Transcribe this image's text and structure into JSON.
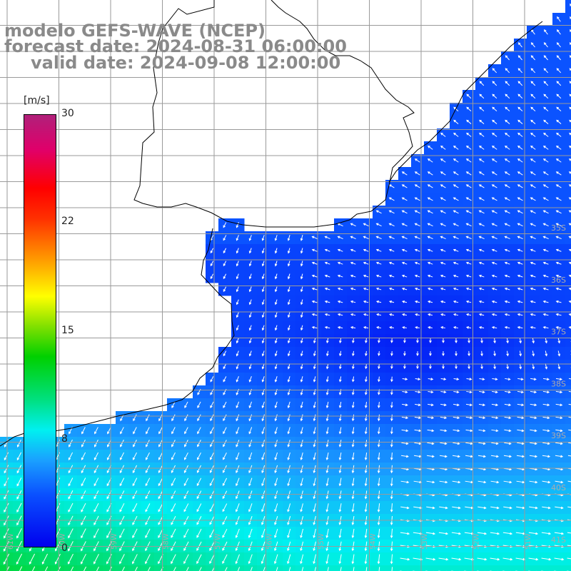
{
  "title": {
    "line1": "modelo GEFS-WAVE (NCEP)",
    "line2": "forecast date: 2024-08-31 06:00:00",
    "line3": "valid date: 2024-09-08 12:00:00"
  },
  "colorbar": {
    "units": "[m/s]",
    "ticks": [
      {
        "label": "30",
        "value": 30
      },
      {
        "label": "22",
        "value": 22
      },
      {
        "label": "15",
        "value": 15
      },
      {
        "label": "8",
        "value": 8
      },
      {
        "label": "0",
        "value": 0
      }
    ]
  },
  "lat_labels": [
    "35S",
    "36S",
    "37S",
    "38S",
    "39S",
    "40S",
    "41S"
  ],
  "lon_labels": [
    "61W",
    "60W",
    "59W",
    "58W",
    "57W",
    "56W",
    "55W",
    "54W",
    "53W",
    "52W",
    "51W"
  ],
  "colors": {
    "land": "#ffffff",
    "coast": "#000000",
    "grid": "#9a9a9a",
    "arrow": "#ffffff",
    "title": "#8a8a8a"
  }
}
